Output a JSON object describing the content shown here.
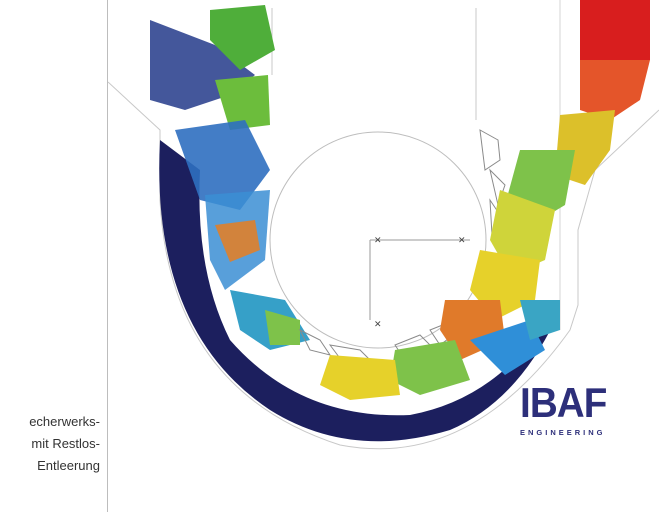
{
  "caption": {
    "lines": [
      "echerwerks-",
      "mit Restlos-",
      "Entleerung"
    ]
  },
  "logo": {
    "word": "IBAF",
    "sub": "ENGINEERING"
  },
  "colors": {
    "particles_low": "#1c1f5e",
    "particles_mid_low": "#2f8fd8",
    "particles_mid": "#7ec24a",
    "particles_mid_high": "#e6d12a",
    "particles_high": "#d81e1e",
    "logo": "#2d2f7a"
  }
}
